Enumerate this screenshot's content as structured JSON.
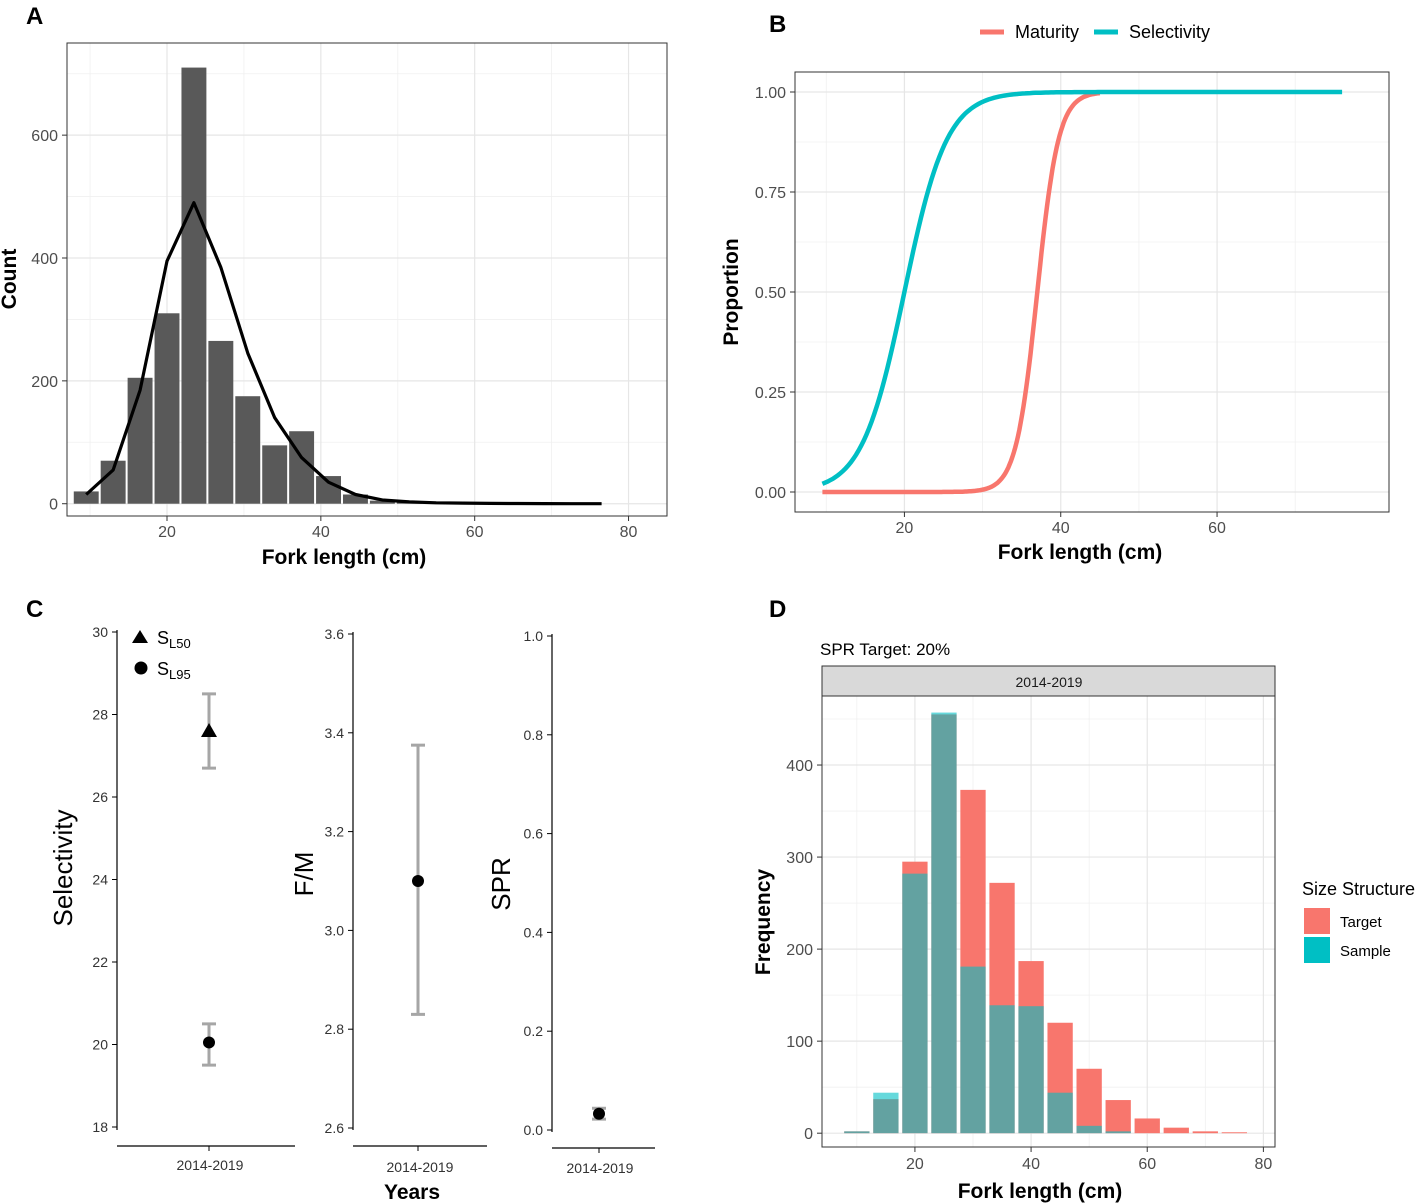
{
  "chart_data": [
    {
      "panel": "A",
      "type": "bar",
      "xlabel": "Fork length (cm)",
      "ylabel": "Count",
      "xlim": [
        7,
        85
      ],
      "ylim": [
        -20,
        750
      ],
      "xticks": [
        20,
        40,
        60,
        80
      ],
      "yticks": [
        0,
        200,
        400,
        600
      ],
      "bin_width": 3.5,
      "bar_centers": [
        9.5,
        13,
        16.5,
        20,
        23.5,
        27,
        30.5,
        34,
        37.5,
        41,
        44.5,
        48,
        51.5,
        55,
        58.5
      ],
      "bar_values": [
        20,
        70,
        205,
        310,
        710,
        265,
        175,
        95,
        118,
        45,
        15,
        5,
        3,
        1,
        0
      ],
      "line_x": [
        9.5,
        13,
        16.5,
        20,
        23.5,
        27,
        30.5,
        34,
        37.5,
        41,
        44.5,
        48,
        51.5,
        55,
        58.5,
        62,
        65.5,
        69,
        72.5,
        76.5
      ],
      "line_y": [
        15,
        55,
        185,
        395,
        490,
        385,
        245,
        140,
        75,
        35,
        15,
        6,
        3,
        1.5,
        1,
        0.5,
        0.3,
        0.2,
        0.1,
        0
      ]
    },
    {
      "panel": "B",
      "type": "line",
      "xlabel": "Fork length (cm)",
      "ylabel": "Proportion",
      "xlim": [
        6,
        82
      ],
      "ylim": [
        -0.05,
        1.05
      ],
      "xticks": [
        20,
        40,
        60
      ],
      "yticks": [
        0,
        0.25,
        0.5,
        0.75,
        1
      ],
      "ytick_labels": [
        "0.00",
        "0.25",
        "0.50",
        "0.75",
        "1.00"
      ],
      "series": [
        {
          "name": "Maturity",
          "color": "#F8766D",
          "model": "logistic",
          "x50": 37,
          "x95": 41,
          "x_range": [
            9.5,
            45
          ]
        },
        {
          "name": "Selectivity",
          "color": "#00BFC4",
          "model": "logistic",
          "x50": 20,
          "x95": 28,
          "x_range": [
            9.5,
            76
          ]
        }
      ]
    },
    {
      "panel": "C",
      "type": "scatter",
      "subplots": [
        {
          "ylabel": "Selectivity",
          "ylim": [
            18,
            30
          ],
          "yticks": [
            18,
            20,
            22,
            24,
            26,
            28,
            30
          ],
          "xtick_label": "2014-2019",
          "points": [
            {
              "name": "SL50",
              "value": 27.6,
              "low": 26.7,
              "high": 28.5,
              "marker": "triangle"
            },
            {
              "name": "SL95",
              "value": 20.05,
              "low": 19.5,
              "high": 20.5,
              "marker": "circle"
            }
          ],
          "legend": [
            {
              "marker": "triangle",
              "base": "S",
              "sub": "L50"
            },
            {
              "marker": "circle",
              "base": "S",
              "sub": "L95"
            }
          ]
        },
        {
          "ylabel": "F/M",
          "ylim": [
            2.6,
            3.6
          ],
          "yticks": [
            2.6,
            2.8,
            3.0,
            3.2,
            3.4,
            3.6
          ],
          "ytick_labels": [
            "2.6",
            "2.8",
            "3.0",
            "3.2",
            "3.4",
            "3.6"
          ],
          "xtick_label": "2014-2019",
          "xlabel": "Years",
          "points": [
            {
              "name": "F/M",
              "value": 3.1,
              "low": 2.83,
              "high": 3.375,
              "marker": "circle"
            }
          ]
        },
        {
          "ylabel": "SPR",
          "ylim": [
            0,
            1
          ],
          "yticks": [
            0,
            0.2,
            0.4,
            0.6,
            0.8,
            1.0
          ],
          "ytick_labels": [
            "0.0",
            "0.2",
            "0.4",
            "0.6",
            "0.8",
            "1.0"
          ],
          "xtick_label": "2014-2019",
          "points": [
            {
              "name": "SPR",
              "value": 0.033,
              "low": 0.022,
              "high": 0.044,
              "marker": "circle"
            }
          ]
        }
      ]
    },
    {
      "panel": "D",
      "type": "bar",
      "title": "SPR Target: 20%",
      "facet_label": "2014-2019",
      "xlabel": "Fork length (cm)",
      "ylabel": "Frequency",
      "xlim": [
        4,
        82
      ],
      "ylim": [
        -15,
        475
      ],
      "xticks": [
        20,
        40,
        60,
        80
      ],
      "yticks": [
        0,
        100,
        200,
        300,
        400
      ],
      "bin_width": 4.7,
      "bar_centers": [
        10,
        15,
        20,
        25,
        30,
        35,
        40,
        45,
        50,
        55,
        60,
        65,
        70,
        75
      ],
      "series": [
        {
          "name": "Target",
          "color": "#F8766D",
          "values": [
            2,
            37,
            295,
            455,
            373,
            272,
            187,
            120,
            70,
            36,
            16,
            6,
            2,
            1
          ]
        },
        {
          "name": "Sample",
          "color": "#00BFC4",
          "values": [
            2,
            44,
            282,
            457,
            181,
            139,
            138,
            44,
            8,
            2,
            0,
            0,
            0,
            0
          ]
        }
      ],
      "legend_title": "Size Structure",
      "legend": [
        "Target",
        "Sample"
      ]
    }
  ],
  "panel_letters": [
    "A",
    "B",
    "C",
    "D"
  ]
}
